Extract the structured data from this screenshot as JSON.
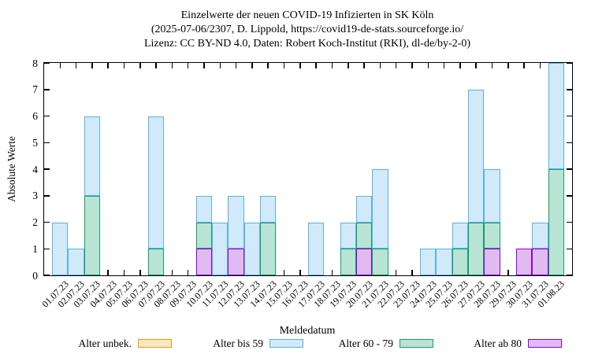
{
  "title": {
    "line1": "Einzelwerte der neuen COVID-19 Infizierten in SK Köln",
    "line2": "(2025-07-06/2307, D. Lippold, https://covid19-de-stats.sourceforge.io/",
    "line3": "Lizenz: CC BY-ND 4.0, Daten: Robert Koch-Institut (RKI), dl-de/by-2-0)"
  },
  "axes": {
    "y_label": "Absolute Werte",
    "x_label": "Meldedatum",
    "y_tick_labels": [
      "0",
      "1",
      "2",
      "3",
      "4",
      "5",
      "6",
      "7",
      "8"
    ]
  },
  "colors": {
    "unbek": {
      "border": "#e69f00",
      "fill": "#f9e8c2"
    },
    "bis59": {
      "border": "#56b4e9",
      "fill": "#d2e9f9"
    },
    "a6079": {
      "border": "#0f9e74",
      "fill": "#b9e4d4"
    },
    "ab80": {
      "border": "#9400d3",
      "fill": "#e0bbf2"
    },
    "axis": "#000000"
  },
  "legend": [
    {
      "key": "unbek",
      "label": "Alter unbek."
    },
    {
      "key": "bis59",
      "label": "Alter bis 59"
    },
    {
      "key": "a6079",
      "label": "Alter 60 - 79"
    },
    {
      "key": "ab80",
      "label": "Alter ab 80"
    }
  ],
  "chart_data": {
    "type": "bar",
    "stacked": true,
    "title": "Einzelwerte der neuen COVID-19 Infizierten in SK Köln",
    "xlabel": "Meldedatum",
    "ylabel": "Absolute Werte",
    "ylim": [
      0,
      8
    ],
    "grid": false,
    "legend_position": "bottom",
    "stack_order_bottom_to_top": [
      "ab80",
      "a6079",
      "bis59",
      "unbek"
    ],
    "categories": [
      "01.07.23",
      "02.07.23",
      "03.07.23",
      "04.07.23",
      "05.07.23",
      "06.07.23",
      "07.07.23",
      "08.07.23",
      "09.07.23",
      "10.07.23",
      "11.07.23",
      "12.07.23",
      "13.07.23",
      "14.07.23",
      "15.07.23",
      "16.07.23",
      "17.07.23",
      "18.07.23",
      "19.07.23",
      "20.07.23",
      "21.07.23",
      "22.07.23",
      "23.07.23",
      "24.07.23",
      "25.07.23",
      "26.07.23",
      "27.07.23",
      "28.07.23",
      "29.07.23",
      "30.07.23",
      "31.07.23",
      "01.08.23"
    ],
    "series": [
      {
        "key": "unbek",
        "name": "Alter unbek.",
        "values": [
          0,
          0,
          0,
          0,
          0,
          0,
          0,
          0,
          0,
          0,
          0,
          0,
          0,
          0,
          0,
          0,
          0,
          0,
          0,
          0,
          0,
          0,
          0,
          0,
          0,
          0,
          0,
          0,
          0,
          0,
          0,
          0
        ]
      },
      {
        "key": "bis59",
        "name": "Alter bis 59",
        "values": [
          2,
          1,
          3,
          0,
          0,
          0,
          5,
          0,
          0,
          1,
          2,
          2,
          2,
          1,
          0,
          0,
          2,
          0,
          1,
          1,
          3,
          0,
          0,
          1,
          1,
          1,
          5,
          2,
          0,
          0,
          1,
          4
        ]
      },
      {
        "key": "a6079",
        "name": "Alter 60 - 79",
        "values": [
          0,
          0,
          3,
          0,
          0,
          0,
          1,
          0,
          0,
          1,
          0,
          0,
          0,
          2,
          0,
          0,
          0,
          0,
          1,
          1,
          1,
          0,
          0,
          0,
          0,
          1,
          2,
          1,
          0,
          0,
          0,
          4
        ]
      },
      {
        "key": "ab80",
        "name": "Alter ab 80",
        "values": [
          0,
          0,
          0,
          0,
          0,
          0,
          0,
          0,
          0,
          1,
          0,
          1,
          0,
          0,
          0,
          0,
          0,
          0,
          0,
          1,
          0,
          0,
          0,
          0,
          0,
          0,
          0,
          1,
          0,
          1,
          1,
          0
        ]
      }
    ]
  }
}
